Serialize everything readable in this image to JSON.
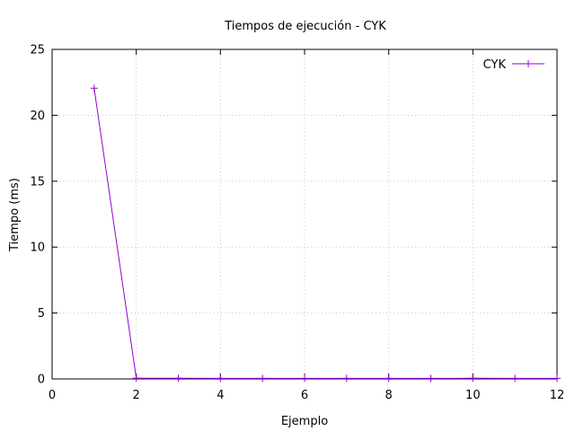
{
  "chart_data": {
    "type": "line",
    "title": "Tiempos de ejecución - CYK",
    "xlabel": "Ejemplo",
    "ylabel": "Tiempo (ms)",
    "xlim": [
      0,
      12
    ],
    "ylim": [
      0,
      25
    ],
    "xticks": [
      0,
      2,
      4,
      6,
      8,
      10,
      12
    ],
    "yticks": [
      0,
      5,
      10,
      15,
      20,
      25
    ],
    "grid": true,
    "legend_position": "top-right",
    "series": [
      {
        "name": "CYK",
        "color": "#9400d3",
        "marker": "plus",
        "x": [
          1,
          2,
          3,
          4,
          5,
          6,
          7,
          8,
          9,
          10,
          11,
          12
        ],
        "y": [
          22.05,
          0.05,
          0.05,
          0.04,
          0.04,
          0.04,
          0.04,
          0.04,
          0.04,
          0.05,
          0.04,
          0.04
        ]
      }
    ]
  }
}
